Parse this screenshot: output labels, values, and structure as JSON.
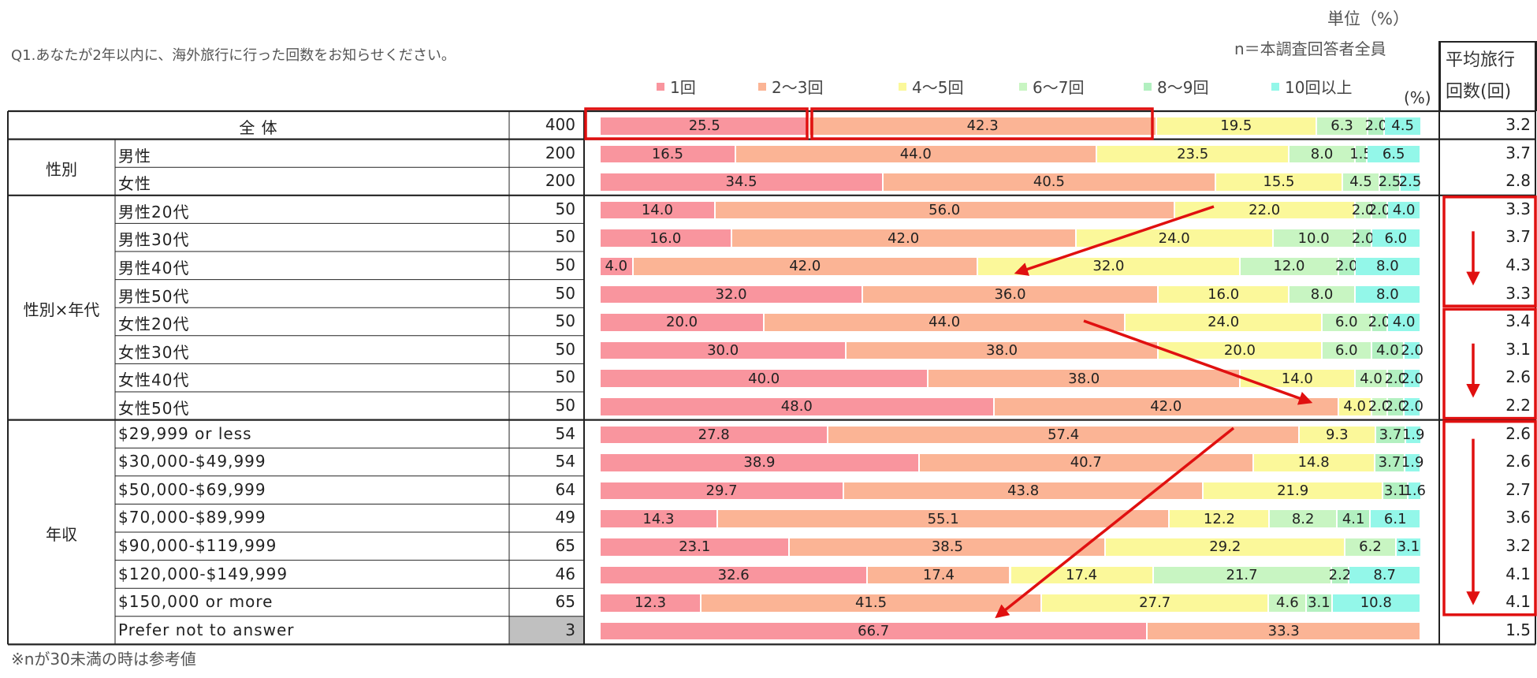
{
  "unit_label": "単位（%）",
  "n_label": "n＝本調査回答者全員",
  "question": "Q1.あなたが2年以内に、海外旅行に行った回数をお知らせください。",
  "note": "※nが30未満の時は参考値",
  "pct_label": "(%)",
  "avg_header": [
    "平均旅行",
    "回数(回)"
  ],
  "colors": {
    "1回": "#f9959e",
    "2〜3回": "#fbb495",
    "4〜5回": "#fbf89a",
    "6〜7回": "#c8f5c2",
    "8〜9回": "#b2f0c0",
    "10回以上": "#93f7e9",
    "highlight": "#e01010",
    "grid": "#222222",
    "na_fill": "#c0c0c0"
  },
  "chart_data": {
    "type": "bar",
    "orientation": "horizontal",
    "stacked": true,
    "unit": "%",
    "legend": [
      "1回",
      "2〜3回",
      "4〜5回",
      "6〜7回",
      "8〜9回",
      "10回以上"
    ],
    "legend_position": "top",
    "xlim": [
      0,
      100
    ],
    "groups": [
      {
        "label": "全 体",
        "rows": [
          {
            "label": "",
            "n": "400",
            "values": [
              25.5,
              42.3,
              19.5,
              6.3,
              2.0,
              4.5
            ],
            "avg": "3.2"
          }
        ]
      },
      {
        "label": "性別",
        "rows": [
          {
            "label": "男性",
            "n": "200",
            "values": [
              16.5,
              44.0,
              23.5,
              8.0,
              1.5,
              6.5
            ],
            "avg": "3.7"
          },
          {
            "label": "女性",
            "n": "200",
            "values": [
              34.5,
              40.5,
              15.5,
              4.5,
              2.5,
              2.5
            ],
            "avg": "2.8"
          }
        ]
      },
      {
        "label": "性別×年代",
        "rows": [
          {
            "label": "男性20代",
            "n": "50",
            "values": [
              14.0,
              56.0,
              22.0,
              2.0,
              2.0,
              4.0
            ],
            "avg": "3.3"
          },
          {
            "label": "男性30代",
            "n": "50",
            "values": [
              16.0,
              42.0,
              24.0,
              10.0,
              2.0,
              6.0
            ],
            "avg": "3.7"
          },
          {
            "label": "男性40代",
            "n": "50",
            "values": [
              4.0,
              42.0,
              32.0,
              12.0,
              2.0,
              8.0
            ],
            "avg": "4.3"
          },
          {
            "label": "男性50代",
            "n": "50",
            "values": [
              32.0,
              36.0,
              16.0,
              8.0,
              0,
              8.0
            ],
            "avg": "3.3"
          },
          {
            "label": "女性20代",
            "n": "50",
            "values": [
              20.0,
              44.0,
              24.0,
              6.0,
              2.0,
              4.0
            ],
            "avg": "3.4"
          },
          {
            "label": "女性30代",
            "n": "50",
            "values": [
              30.0,
              38.0,
              20.0,
              6.0,
              4.0,
              2.0
            ],
            "avg": "3.1"
          },
          {
            "label": "女性40代",
            "n": "50",
            "values": [
              40.0,
              38.0,
              14.0,
              4.0,
              2.0,
              2.0
            ],
            "avg": "2.6"
          },
          {
            "label": "女性50代",
            "n": "50",
            "values": [
              48.0,
              42.0,
              4.0,
              2.0,
              2.0,
              2.0
            ],
            "avg": "2.2"
          }
        ]
      },
      {
        "label": "年収",
        "rows": [
          {
            "label": "$29,999 or less",
            "n": "54",
            "values": [
              27.8,
              57.4,
              9.3,
              0,
              3.7,
              1.9
            ],
            "avg": "2.6"
          },
          {
            "label": "$30,000-$49,999",
            "n": "54",
            "values": [
              38.9,
              40.7,
              14.8,
              0,
              3.7,
              1.9
            ],
            "avg": "2.6"
          },
          {
            "label": "$50,000-$69,999",
            "n": "64",
            "values": [
              29.7,
              43.8,
              21.9,
              0,
              3.1,
              1.6
            ],
            "avg": "2.7"
          },
          {
            "label": "$70,000-$89,999",
            "n": "49",
            "values": [
              14.3,
              55.1,
              12.2,
              8.2,
              4.1,
              6.1
            ],
            "avg": "3.6"
          },
          {
            "label": "$90,000-$119,999",
            "n": "65",
            "values": [
              23.1,
              38.5,
              29.2,
              6.2,
              0,
              3.1
            ],
            "avg": "3.2"
          },
          {
            "label": "$120,000-$149,999",
            "n": "46",
            "values": [
              32.6,
              17.4,
              17.4,
              21.7,
              2.2,
              8.7
            ],
            "avg": "4.1"
          },
          {
            "label": "$150,000 or more",
            "n": "65",
            "values": [
              12.3,
              41.5,
              27.7,
              4.6,
              3.1,
              10.8
            ],
            "avg": "4.1"
          },
          {
            "label": "Prefer not to answer",
            "n": "3",
            "values": [
              66.7,
              33.3,
              0,
              0,
              0,
              0
            ],
            "avg": "1.5",
            "low_n": true
          }
        ]
      }
    ]
  }
}
